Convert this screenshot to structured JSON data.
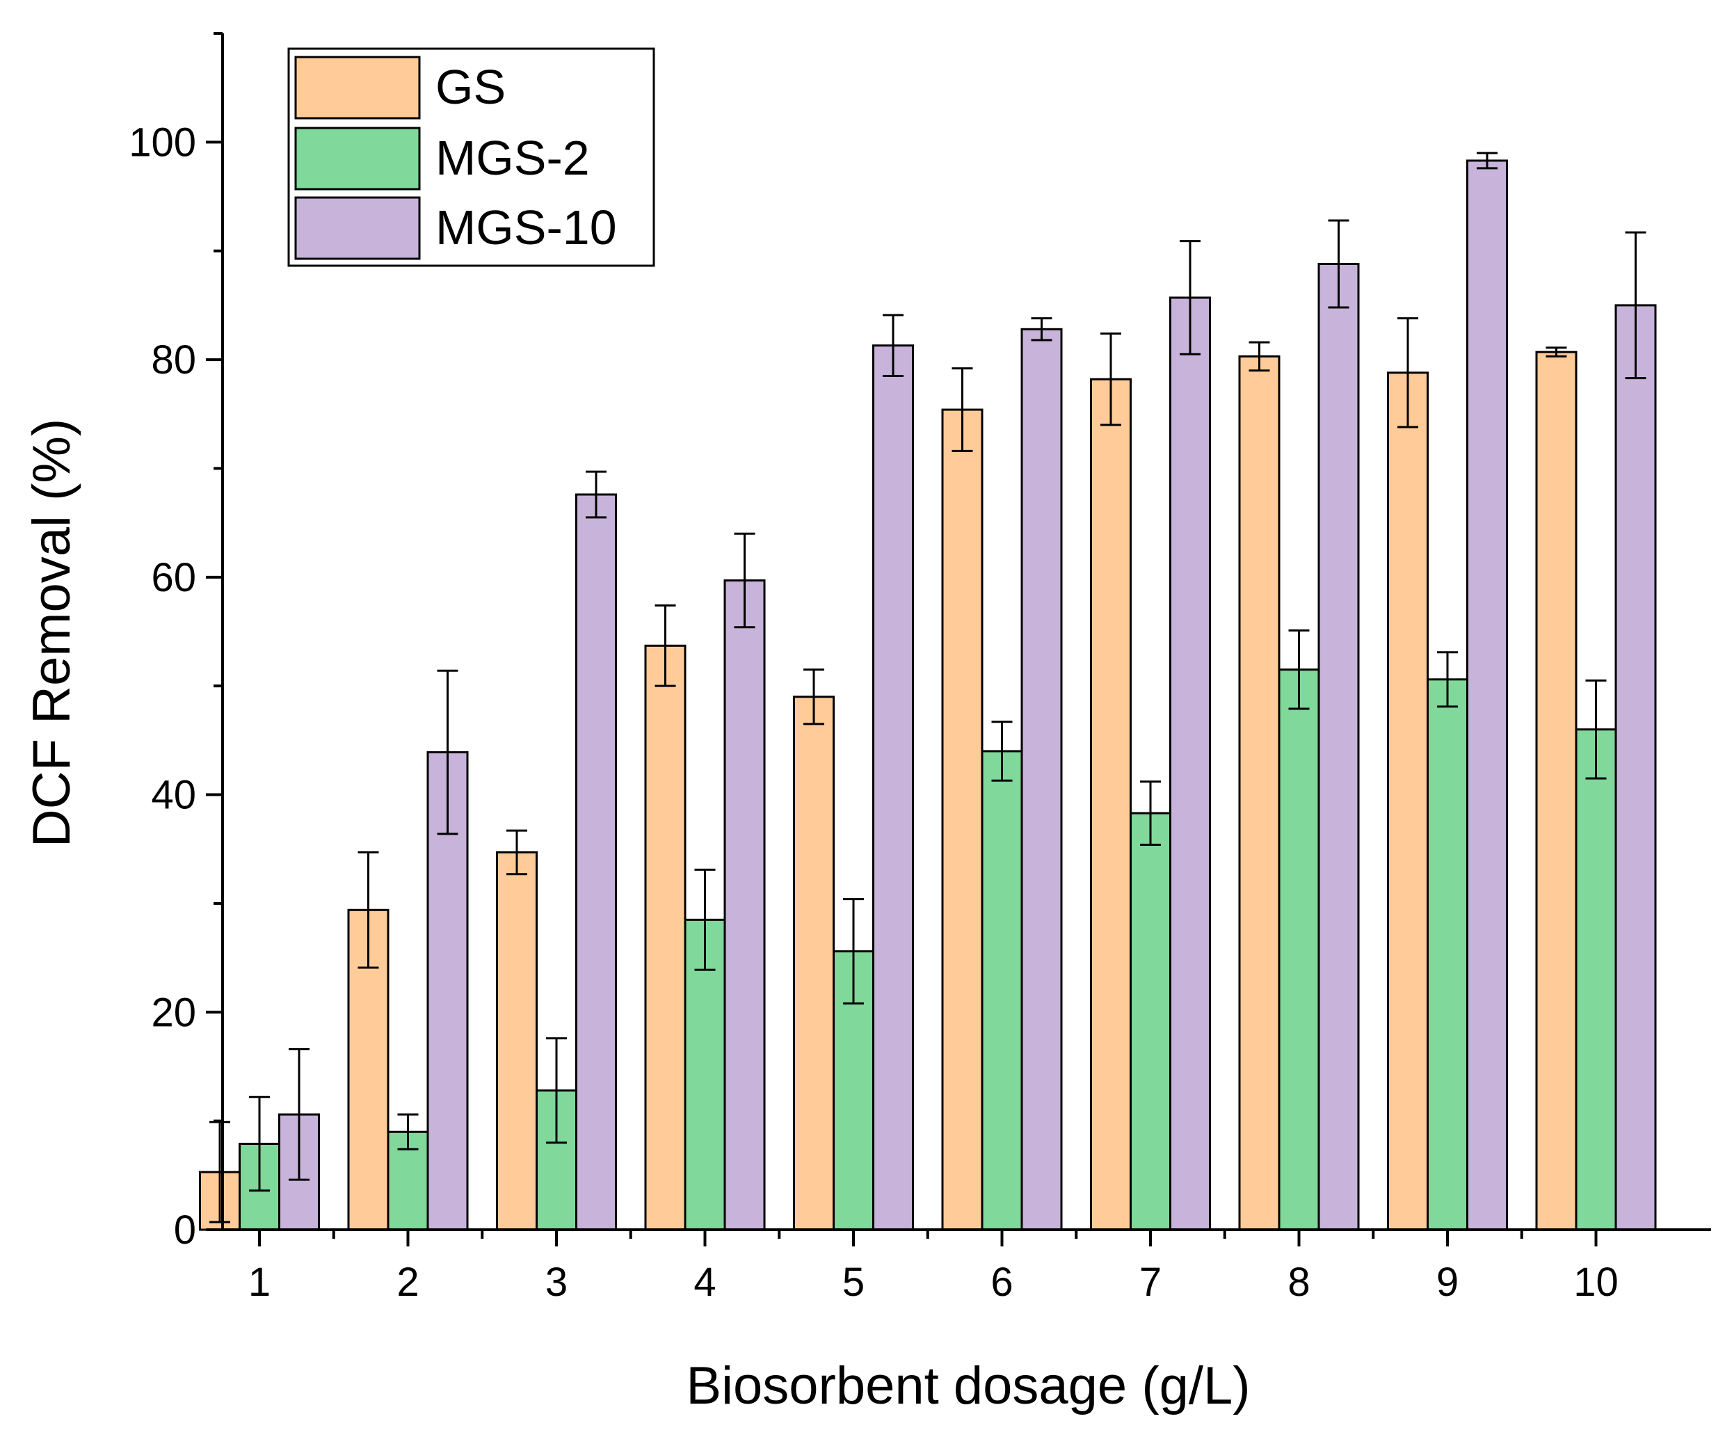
{
  "chart_data": {
    "type": "bar",
    "title": "",
    "xlabel": "Biosorbent dosage (g/L)",
    "ylabel": "DCF Removal (%)",
    "ylim": [
      0,
      110
    ],
    "yticks": [
      0,
      20,
      40,
      60,
      80,
      100
    ],
    "grid": false,
    "legend_position": "top-left",
    "categories": [
      "1",
      "2",
      "3",
      "4",
      "5",
      "6",
      "7",
      "8",
      "9",
      "10"
    ],
    "series": [
      {
        "name": "GS",
        "color": "#FFCC99",
        "values": [
          5.3,
          29.4,
          34.7,
          53.7,
          49.0,
          75.4,
          78.2,
          80.3,
          78.8,
          80.7
        ],
        "errors": [
          4.6,
          5.3,
          2.0,
          3.7,
          2.5,
          3.8,
          4.2,
          1.3,
          5.0,
          0.4
        ]
      },
      {
        "name": "MGS-2",
        "color": "#80D89A",
        "values": [
          7.9,
          9.0,
          12.8,
          28.5,
          25.6,
          44.0,
          38.3,
          51.5,
          50.6,
          46.0
        ],
        "errors": [
          4.3,
          1.6,
          4.8,
          4.6,
          4.8,
          2.7,
          2.9,
          3.6,
          2.5,
          4.5
        ]
      },
      {
        "name": "MGS-10",
        "color": "#C8B4DA",
        "values": [
          10.6,
          43.9,
          67.6,
          59.7,
          81.3,
          82.8,
          85.7,
          88.8,
          98.3,
          85.0
        ],
        "errors": [
          6.0,
          7.5,
          2.1,
          4.3,
          2.8,
          1.0,
          5.2,
          4.0,
          0.7,
          6.7
        ]
      }
    ]
  }
}
